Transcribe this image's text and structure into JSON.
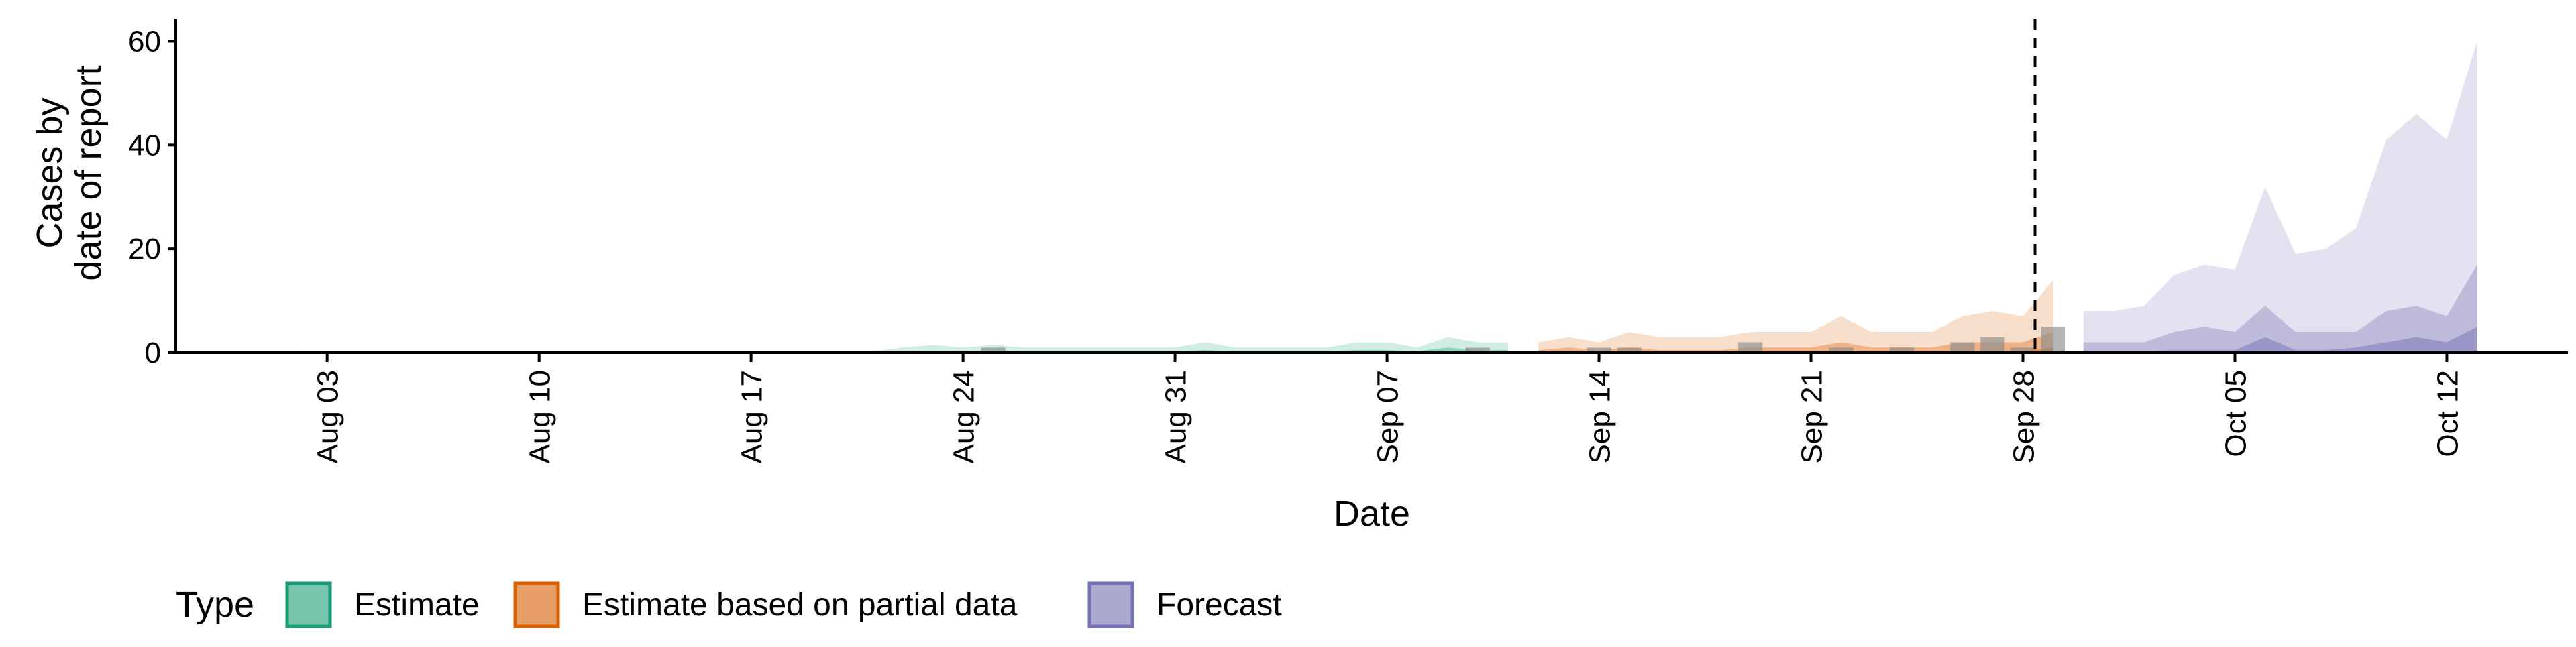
{
  "chart_data": {
    "type": "area",
    "xlabel": "Date",
    "ylabel_lines": [
      "Cases by",
      "date of report"
    ],
    "ylim": [
      0,
      62
    ],
    "y_ticks": [
      0,
      20,
      40,
      60
    ],
    "x_range": [
      "2020-07-29",
      "2020-10-16"
    ],
    "x_ticks": [
      {
        "date": "2020-08-03",
        "label": "Aug 03"
      },
      {
        "date": "2020-08-10",
        "label": "Aug 10"
      },
      {
        "date": "2020-08-17",
        "label": "Aug 17"
      },
      {
        "date": "2020-08-24",
        "label": "Aug 24"
      },
      {
        "date": "2020-08-31",
        "label": "Aug 31"
      },
      {
        "date": "2020-09-07",
        "label": "Sep 07"
      },
      {
        "date": "2020-09-14",
        "label": "Sep 14"
      },
      {
        "date": "2020-09-21",
        "label": "Sep 21"
      },
      {
        "date": "2020-09-28",
        "label": "Sep 28"
      },
      {
        "date": "2020-10-05",
        "label": "Oct 05"
      },
      {
        "date": "2020-10-12",
        "label": "Oct 12"
      }
    ],
    "cutoff_date": "2020-09-28",
    "legend": {
      "title": "Type",
      "position": "bottom",
      "entries": [
        {
          "label": "Estimate",
          "fill": "#1b9e77"
        },
        {
          "label": "Estimate based on partial data",
          "fill": "#d95f02"
        },
        {
          "label": "Forecast",
          "fill": "#7570b3"
        }
      ]
    },
    "series": [
      {
        "name": "Estimate",
        "color": "#1b9e77",
        "dates": [
          "2020-08-02",
          "2020-08-03",
          "2020-08-04",
          "2020-08-05",
          "2020-08-06",
          "2020-08-07",
          "2020-08-08",
          "2020-08-09",
          "2020-08-10",
          "2020-08-11",
          "2020-08-12",
          "2020-08-13",
          "2020-08-14",
          "2020-08-15",
          "2020-08-16",
          "2020-08-17",
          "2020-08-18",
          "2020-08-19",
          "2020-08-20",
          "2020-08-21",
          "2020-08-22",
          "2020-08-23",
          "2020-08-24",
          "2020-08-25",
          "2020-08-26",
          "2020-08-27",
          "2020-08-28",
          "2020-08-29",
          "2020-08-30",
          "2020-08-31",
          "2020-09-01",
          "2020-09-02",
          "2020-09-03",
          "2020-09-04",
          "2020-09-05",
          "2020-09-06",
          "2020-09-07",
          "2020-09-08",
          "2020-09-09",
          "2020-09-10",
          "2020-09-11"
        ],
        "upper90": [
          0.3,
          0.3,
          0.3,
          0.3,
          0.3,
          0.3,
          0.3,
          0.3,
          0.3,
          0.3,
          0.3,
          0.3,
          0.3,
          0.3,
          0.3,
          0.3,
          0.3,
          0.3,
          0.3,
          0.3,
          1,
          1.5,
          1,
          1.5,
          1,
          1,
          1,
          1,
          1,
          1,
          2,
          1,
          1,
          1,
          1,
          2,
          2,
          1,
          3,
          2,
          2
        ],
        "upper50": [
          0,
          0,
          0,
          0,
          0,
          0,
          0,
          0,
          0,
          0,
          0,
          0,
          0,
          0,
          0,
          0,
          0,
          0,
          0,
          0,
          0.3,
          0.3,
          0.3,
          0.3,
          0.3,
          0.3,
          0.3,
          0.3,
          0.3,
          0.3,
          0.5,
          0.3,
          0.3,
          0.3,
          0.3,
          0.5,
          0.5,
          0.3,
          1,
          0.5,
          0.5
        ],
        "upper20": [
          0,
          0,
          0,
          0,
          0,
          0,
          0,
          0,
          0,
          0,
          0,
          0,
          0,
          0,
          0,
          0,
          0,
          0,
          0,
          0,
          0,
          0,
          0,
          0,
          0,
          0,
          0,
          0,
          0,
          0,
          0,
          0,
          0,
          0,
          0,
          0,
          0,
          0,
          0.3,
          0,
          0
        ]
      },
      {
        "name": "Estimate based on partial data",
        "color": "#d95f02",
        "dates": [
          "2020-09-12",
          "2020-09-13",
          "2020-09-14",
          "2020-09-15",
          "2020-09-16",
          "2020-09-17",
          "2020-09-18",
          "2020-09-19",
          "2020-09-20",
          "2020-09-21",
          "2020-09-22",
          "2020-09-23",
          "2020-09-24",
          "2020-09-25",
          "2020-09-26",
          "2020-09-27",
          "2020-09-28",
          "2020-09-29"
        ],
        "upper90": [
          2,
          3,
          2,
          4,
          3,
          3,
          3,
          4,
          4,
          4,
          7,
          4,
          4,
          4,
          7,
          8,
          7,
          14
        ],
        "upper50": [
          0.5,
          1,
          0.5,
          1,
          0.5,
          0.5,
          0.5,
          1,
          1,
          1,
          2,
          1,
          1,
          1,
          2,
          2,
          2,
          4
        ],
        "upper20": [
          0,
          0,
          0,
          0,
          0,
          0,
          0,
          0,
          0,
          0,
          0.3,
          0,
          0,
          0,
          0.3,
          0.3,
          0.3,
          1
        ]
      },
      {
        "name": "Forecast",
        "color": "#7570b3",
        "dates": [
          "2020-09-30",
          "2020-10-01",
          "2020-10-02",
          "2020-10-03",
          "2020-10-04",
          "2020-10-05",
          "2020-10-06",
          "2020-10-07",
          "2020-10-08",
          "2020-10-09",
          "2020-10-10",
          "2020-10-11",
          "2020-10-12",
          "2020-10-13"
        ],
        "upper90": [
          8,
          8,
          9,
          15,
          17,
          16,
          32,
          19,
          20,
          24,
          41,
          46,
          41,
          60
        ],
        "upper50": [
          2,
          2,
          2,
          4,
          5,
          4,
          9,
          4,
          4,
          4,
          8,
          9,
          7,
          17
        ],
        "upper20": [
          0.3,
          0.3,
          0.3,
          0.5,
          0.5,
          0.5,
          3,
          0.5,
          0.5,
          1,
          2,
          3,
          2,
          5
        ]
      }
    ],
    "observed_cases": [
      {
        "date": "2020-08-25",
        "value": 1
      },
      {
        "date": "2020-09-10",
        "value": 1
      },
      {
        "date": "2020-09-14",
        "value": 1
      },
      {
        "date": "2020-09-15",
        "value": 1
      },
      {
        "date": "2020-09-19",
        "value": 2
      },
      {
        "date": "2020-09-22",
        "value": 1
      },
      {
        "date": "2020-09-24",
        "value": 1
      },
      {
        "date": "2020-09-26",
        "value": 2
      },
      {
        "date": "2020-09-27",
        "value": 3
      },
      {
        "date": "2020-09-28",
        "value": 1
      },
      {
        "date": "2020-09-29",
        "value": 5
      }
    ]
  }
}
